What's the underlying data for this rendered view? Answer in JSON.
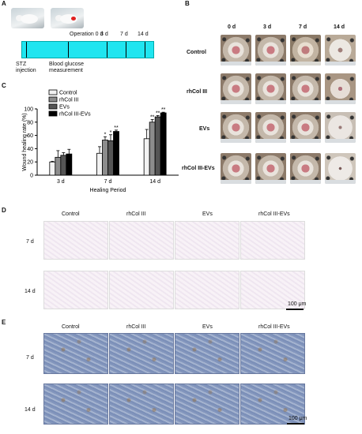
{
  "panels": {
    "A": "A",
    "B": "B",
    "C": "C",
    "D": "D",
    "E": "E"
  },
  "panelA": {
    "operation_label": "Operation 0 d",
    "timepoints": [
      "3 d",
      "7 d",
      "14 d"
    ],
    "stz_label": "STZ\ninjection",
    "glucose_label": "Blood glucose\nmeasurement"
  },
  "panelB": {
    "columns": [
      "0 d",
      "3 d",
      "7 d",
      "14 d"
    ],
    "rows": [
      "Control",
      "rhCol III",
      "EVs",
      "rhCol III-EVs"
    ]
  },
  "chart_data": {
    "type": "bar",
    "categories": [
      "3 d",
      "7 d",
      "14 d"
    ],
    "xlabel": "Healing Period",
    "ylabel": "Wound healing rate (%)",
    "ylim": [
      0,
      100
    ],
    "yticks": [
      "0",
      "20",
      "40",
      "60",
      "80",
      "100"
    ],
    "legend_position": "top-left",
    "series": [
      {
        "name": "Control",
        "color": "#f2f2f2",
        "values": [
          20,
          33,
          55
        ],
        "errors": [
          1,
          10,
          14
        ],
        "sig": [
          "",
          "",
          ""
        ]
      },
      {
        "name": "rhCol III",
        "color": "#8c8c8c",
        "values": [
          27,
          53,
          80
        ],
        "errors": [
          10,
          5,
          4
        ],
        "sig": [
          "",
          "*",
          "**"
        ]
      },
      {
        "name": "EVs",
        "color": "#555555",
        "values": [
          30,
          52,
          88
        ],
        "errors": [
          4,
          9,
          2
        ],
        "sig": [
          "",
          "*",
          "**"
        ]
      },
      {
        "name": "rhCol III-EVs",
        "color": "#000000",
        "values": [
          32,
          66,
          94
        ],
        "errors": [
          7,
          2,
          1
        ],
        "sig": [
          "",
          "**",
          "**"
        ]
      }
    ]
  },
  "panelD": {
    "columns": [
      "Control",
      "rhCol III",
      "EVs",
      "rhCol III-EVs"
    ],
    "rows": [
      "7 d",
      "14 d"
    ],
    "scale": "100 μm"
  },
  "panelE": {
    "columns": [
      "Control",
      "rhCol III",
      "EVs",
      "rhCol III-EVs"
    ],
    "rows": [
      "7 d",
      "14 d"
    ],
    "scale": "100 μm"
  }
}
